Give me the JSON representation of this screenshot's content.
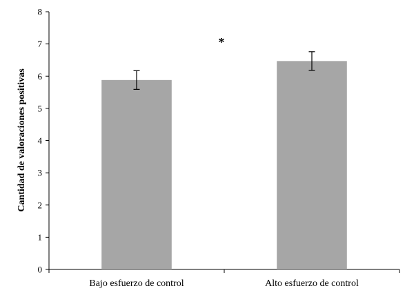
{
  "chart_data": {
    "type": "bar",
    "categories": [
      "Bajo esfuerzo de control",
      "Alto esfuerzo de control"
    ],
    "values": [
      5.88,
      6.47
    ],
    "error": [
      0.29,
      0.29
    ],
    "xlabel": "",
    "ylabel": "Cantidad de valoraciones positivas",
    "ylim": [
      0,
      8
    ],
    "yticks": [
      0,
      1,
      2,
      3,
      4,
      5,
      6,
      7,
      8
    ],
    "annotation": "*",
    "grid": false,
    "bar_color": "#a6a6a6"
  }
}
